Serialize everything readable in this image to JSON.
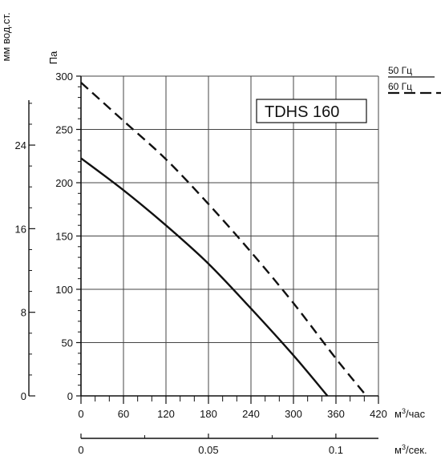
{
  "chart_data": {
    "type": "line",
    "title": "TDHS 160",
    "x": {
      "label": "м³/час",
      "ticks": [
        0,
        60,
        120,
        180,
        240,
        300,
        360,
        420
      ],
      "range": [
        0,
        420
      ]
    },
    "x2": {
      "label": "м³/сек.",
      "ticks": [
        0,
        0.05,
        0.1
      ],
      "range": [
        0,
        0.1167
      ]
    },
    "y": {
      "label": "Па",
      "ticks": [
        0,
        50,
        100,
        150,
        200,
        250,
        300
      ],
      "range": [
        0,
        300
      ]
    },
    "y2": {
      "label": "мм вод.ст.",
      "ticks": [
        0,
        8,
        16,
        24
      ],
      "range": [
        0,
        30.6
      ]
    },
    "grid": true,
    "legend_position": "top-right",
    "series": [
      {
        "name": "50 Гц",
        "style": "solid",
        "points": [
          [
            0,
            223
          ],
          [
            60,
            193
          ],
          [
            120,
            160
          ],
          [
            180,
            124
          ],
          [
            240,
            82
          ],
          [
            300,
            38
          ],
          [
            348,
            0
          ]
        ]
      },
      {
        "name": "60 Гц",
        "style": "dashed",
        "points": [
          [
            0,
            294
          ],
          [
            60,
            258
          ],
          [
            120,
            222
          ],
          [
            180,
            180
          ],
          [
            240,
            135
          ],
          [
            300,
            87
          ],
          [
            360,
            35
          ],
          [
            403,
            0
          ]
        ]
      }
    ]
  }
}
